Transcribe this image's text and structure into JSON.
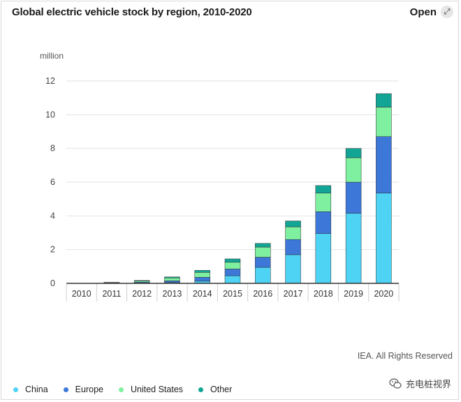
{
  "header": {
    "title": "Global electric vehicle stock by region, 2010-2020",
    "open_label": "Open",
    "open_icon": "expand-arrows-icon"
  },
  "credit": "IEA. All Rights Reserved",
  "watermark": {
    "text": "充电桩视界",
    "icon": "wechat-icon"
  },
  "legend": [
    {
      "label": "China",
      "color": "#4fd3f5"
    },
    {
      "label": "Europe",
      "color": "#3d78d8"
    },
    {
      "label": "United States",
      "color": "#7ff0a0"
    },
    {
      "label": "Other",
      "color": "#12a596"
    }
  ],
  "chart_data": {
    "type": "bar",
    "stacked": true,
    "title": "Global electric vehicle stock by region, 2010-2020",
    "ylabel": "million",
    "xlabel": "",
    "ylim": [
      0,
      12
    ],
    "yticks": [
      0,
      2,
      4,
      6,
      8,
      10,
      12
    ],
    "grid": true,
    "legend_position": "bottom",
    "categories": [
      "2010",
      "2011",
      "2012",
      "2013",
      "2014",
      "2015",
      "2016",
      "2017",
      "2018",
      "2019",
      "2020"
    ],
    "series": [
      {
        "name": "China",
        "color": "#4fd3f5",
        "values": [
          0.0,
          0.01,
          0.02,
          0.05,
          0.13,
          0.45,
          0.95,
          1.7,
          2.95,
          4.15,
          5.35
        ]
      },
      {
        "name": "Europe",
        "color": "#3d78d8",
        "values": [
          0.0,
          0.02,
          0.05,
          0.1,
          0.23,
          0.4,
          0.6,
          0.9,
          1.3,
          1.85,
          3.35
        ]
      },
      {
        "name": "United States",
        "color": "#7ff0a0",
        "values": [
          0.0,
          0.02,
          0.07,
          0.17,
          0.29,
          0.4,
          0.6,
          0.75,
          1.1,
          1.45,
          1.75
        ]
      },
      {
        "name": "Other",
        "color": "#12a596",
        "values": [
          0.0,
          0.01,
          0.03,
          0.06,
          0.12,
          0.2,
          0.22,
          0.35,
          0.45,
          0.55,
          0.8
        ]
      }
    ]
  }
}
